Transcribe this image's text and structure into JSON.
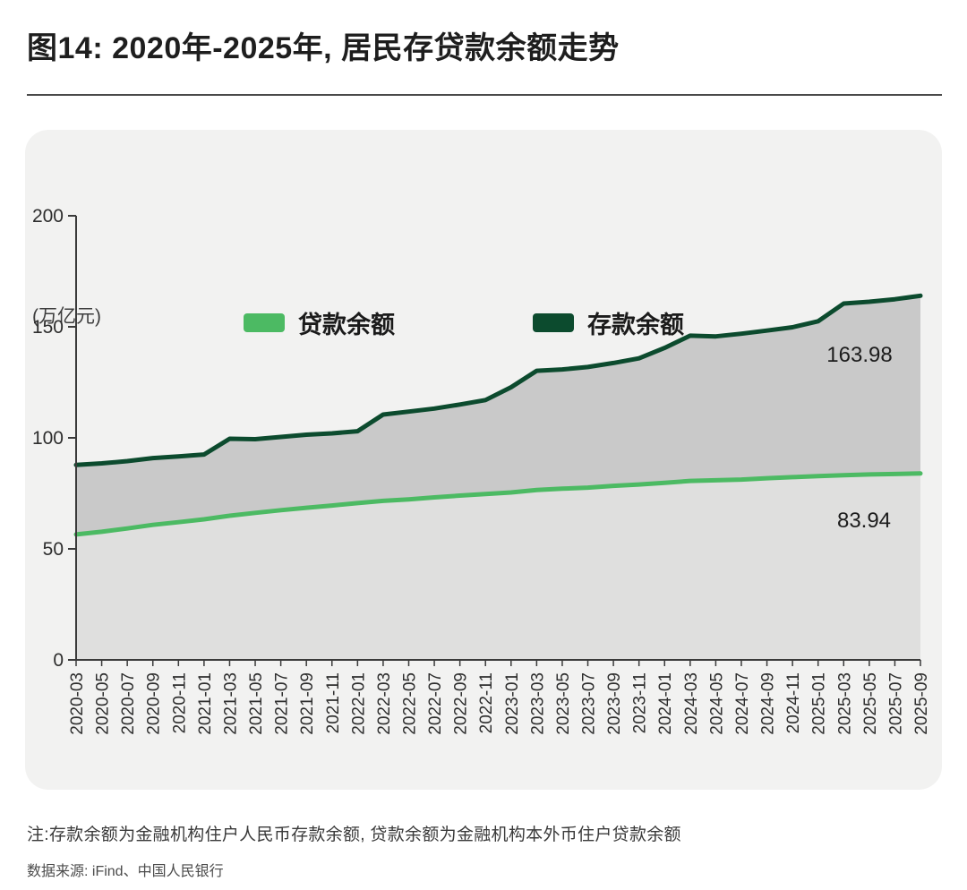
{
  "title": "图14: 2020年-2025年, 居民存贷款余额走势",
  "unit_label": "(万亿元)",
  "legend": [
    {
      "label": "贷款余额",
      "color_key": "loan"
    },
    {
      "label": "存款余额",
      "color_key": "deposit"
    }
  ],
  "end_labels": {
    "deposit": "163.98",
    "loan": "83.94"
  },
  "note": "注:存款余额为金融机构住户人民币存款余额, 贷款余额为金融机构本外币住户贷款余额",
  "source": "数据来源: iFind、中国人民银行",
  "colors": {
    "loan": "#4cba63",
    "deposit": "#0c4b2e",
    "band_fill": "#c9c9c9",
    "lower_fill": "#dfdfde",
    "axis": "#3a3a3a",
    "tick_label": "#2e2e2e",
    "card_bg": "#f2f2f1"
  },
  "chart_data": {
    "type": "area",
    "title": "图14: 2020年-2025年, 居民存贷款余额走势",
    "xlabel": "",
    "ylabel": "(万亿元)",
    "ylim": [
      0,
      200
    ],
    "yticks": [
      0,
      50,
      100,
      150,
      200
    ],
    "grid": false,
    "legend_position": "top-center",
    "x": [
      "2020-03",
      "2020-05",
      "2020-07",
      "2020-09",
      "2020-11",
      "2021-01",
      "2021-03",
      "2021-05",
      "2021-07",
      "2021-09",
      "2021-11",
      "2022-01",
      "2022-03",
      "2022-05",
      "2022-07",
      "2022-09",
      "2022-11",
      "2023-01",
      "2023-03",
      "2023-05",
      "2023-07",
      "2023-09",
      "2023-11",
      "2024-01",
      "2024-03",
      "2024-05",
      "2024-07",
      "2024-09",
      "2024-11",
      "2025-01",
      "2025-03",
      "2025-05",
      "2025-07",
      "2025-09"
    ],
    "series": [
      {
        "name": "存款余额",
        "color_key": "deposit",
        "end_label": "163.98",
        "values": [
          87.8,
          88.5,
          89.5,
          90.9,
          91.6,
          92.5,
          99.6,
          99.4,
          100.4,
          101.4,
          102.0,
          103.0,
          110.5,
          111.8,
          113.2,
          115.0,
          117.0,
          122.8,
          130.2,
          130.8,
          131.9,
          133.7,
          135.8,
          140.5,
          146.0,
          145.7,
          146.9,
          148.3,
          149.8,
          152.5,
          160.5,
          161.3,
          162.4,
          163.98
        ]
      },
      {
        "name": "贷款余额",
        "color_key": "loan",
        "end_label": "83.94",
        "values": [
          56.5,
          57.7,
          59.2,
          60.8,
          62.0,
          63.3,
          64.9,
          66.2,
          67.4,
          68.5,
          69.5,
          70.6,
          71.6,
          72.3,
          73.2,
          74.0,
          74.7,
          75.4,
          76.5,
          77.1,
          77.6,
          78.4,
          79.0,
          79.7,
          80.6,
          80.9,
          81.2,
          81.8,
          82.3,
          82.8,
          83.2,
          83.5,
          83.7,
          83.94
        ]
      }
    ]
  }
}
